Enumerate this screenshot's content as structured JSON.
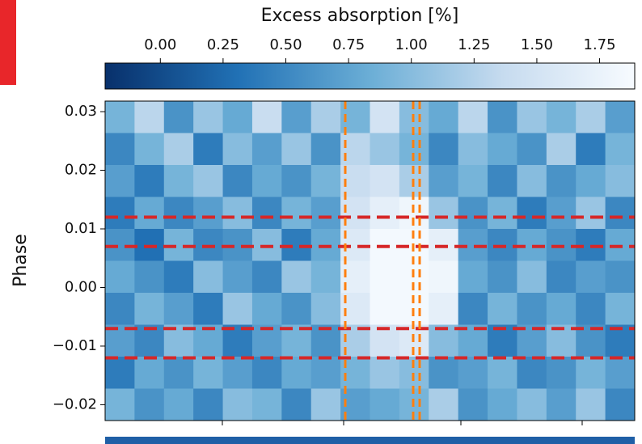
{
  "chart_data": {
    "type": "heatmap",
    "colorbar_label": "Excess absorption [%]",
    "ylabel": "Phase",
    "clim": [
      -0.22,
      1.89
    ],
    "cticks": [
      {
        "value": 0,
        "label": "0.00"
      },
      {
        "value": 0.25,
        "label": "0.25"
      },
      {
        "value": 0.5,
        "label": "0.50"
      },
      {
        "value": 0.75,
        "label": "0.75"
      },
      {
        "value": 1,
        "label": "1.00"
      },
      {
        "value": 1.25,
        "label": "1.25"
      },
      {
        "value": 1.5,
        "label": "1.50"
      },
      {
        "value": 1.75,
        "label": "1.75"
      }
    ],
    "colormap": [
      "#08306b",
      "#2171b5",
      "#6baed6",
      "#c6dbef",
      "#f7fbff"
    ],
    "ylim": [
      -0.0227,
      0.0318
    ],
    "yticks": [
      {
        "value": -0.02,
        "label": "−0.02"
      },
      {
        "value": -0.01,
        "label": "−0.01"
      },
      {
        "value": 0,
        "label": "0.00"
      },
      0.01,
      0.02,
      0.03
    ],
    "hlines": [
      0.012,
      0.007,
      -0.007,
      -0.012
    ],
    "hline_color": "#d62728",
    "z": [
      [
        0.9,
        1.3,
        0.6,
        1.1,
        0.8,
        1.4,
        0.7,
        1.2,
        0.9,
        1.5,
        1.0,
        0.8,
        1.3,
        0.6,
        1.1,
        0.9,
        1.2,
        0.7
      ],
      [
        0.5,
        0.9,
        1.2,
        0.4,
        1.0,
        0.7,
        1.1,
        0.6,
        1.3,
        1.1,
        0.9,
        0.5,
        1.0,
        0.8,
        0.6,
        1.2,
        0.4,
        0.9
      ],
      [
        0.7,
        0.4,
        0.9,
        1.1,
        0.5,
        0.8,
        0.6,
        0.9,
        1.4,
        1.5,
        1.2,
        0.7,
        0.9,
        0.5,
        1.0,
        0.6,
        0.8,
        1.0
      ],
      [
        0.4,
        0.8,
        0.5,
        0.7,
        1.0,
        0.5,
        0.9,
        0.7,
        1.5,
        1.7,
        1.8,
        1.1,
        0.6,
        0.9,
        0.4,
        0.7,
        1.1,
        0.5
      ],
      [
        0.6,
        0.3,
        0.9,
        0.5,
        0.6,
        1.0,
        0.4,
        0.8,
        1.6,
        1.85,
        1.85,
        1.7,
        0.7,
        0.5,
        0.8,
        0.6,
        0.4,
        0.8
      ],
      [
        0.8,
        0.6,
        0.4,
        1.0,
        0.7,
        0.5,
        1.1,
        0.9,
        1.7,
        1.85,
        1.85,
        1.8,
        0.8,
        0.6,
        1.0,
        0.5,
        0.7,
        0.6
      ],
      [
        0.5,
        0.9,
        0.7,
        0.4,
        1.1,
        0.8,
        0.6,
        1.0,
        1.6,
        1.85,
        1.85,
        1.7,
        0.5,
        0.9,
        0.6,
        0.8,
        0.5,
        0.9
      ],
      [
        0.7,
        0.5,
        1.0,
        0.8,
        0.4,
        0.7,
        0.9,
        0.6,
        1.2,
        1.5,
        1.6,
        1.0,
        0.8,
        0.4,
        0.7,
        1.0,
        0.6,
        0.4
      ],
      [
        0.4,
        0.8,
        0.6,
        0.9,
        0.7,
        0.5,
        0.8,
        0.7,
        0.9,
        1.1,
        1.0,
        0.6,
        0.7,
        0.9,
        0.5,
        0.6,
        0.9,
        0.7
      ],
      [
        0.9,
        0.6,
        0.8,
        0.5,
        1.0,
        0.9,
        0.5,
        1.1,
        0.7,
        0.8,
        0.9,
        1.2,
        0.6,
        0.8,
        1.0,
        0.7,
        1.1,
        0.5
      ]
    ]
  }
}
